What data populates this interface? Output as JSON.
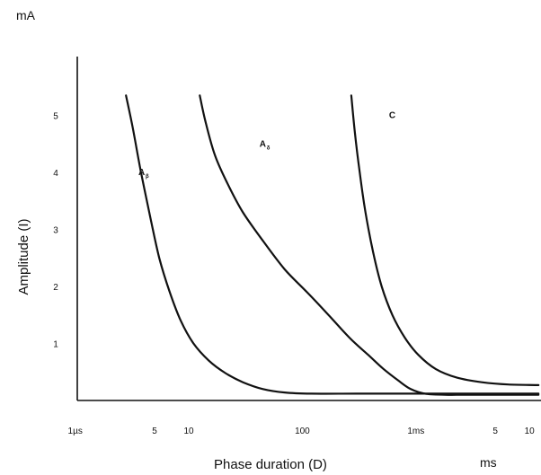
{
  "chart_data": {
    "type": "line",
    "title": "",
    "xlabel": "Phase duration  (D)",
    "ylabel": "Amplitude  (I)",
    "y_unit": "mA",
    "x_unit": "ms",
    "x_scale": "log",
    "xlim": [
      0.0006,
      12
    ],
    "ylim": [
      0,
      5.8
    ],
    "grid": false,
    "legend": "none",
    "x_ticks": [
      {
        "value": 0.001,
        "label": "1µs"
      },
      {
        "value": 0.005,
        "label": "5"
      },
      {
        "value": 0.01,
        "label": "10"
      },
      {
        "value": 0.1,
        "label": "100"
      },
      {
        "value": 1,
        "label": "1ms"
      },
      {
        "value": 5,
        "label": "5"
      },
      {
        "value": 10,
        "label": "10"
      }
    ],
    "y_ticks": [
      {
        "value": 1,
        "label": "1"
      },
      {
        "value": 2,
        "label": "2"
      },
      {
        "value": 3,
        "label": "3"
      },
      {
        "value": 4,
        "label": "4"
      },
      {
        "value": 5,
        "label": "5"
      }
    ],
    "series": [
      {
        "label_main": "A",
        "label_sub": "β",
        "label_at": {
          "x": 0.0036,
          "y": 3.95
        },
        "x": [
          0.0028,
          0.0032,
          0.0038,
          0.0046,
          0.0055,
          0.0068,
          0.0085,
          0.011,
          0.015,
          0.021,
          0.03,
          0.045,
          0.07,
          0.12,
          0.3,
          1.0,
          12
        ],
        "y": [
          5.35,
          4.8,
          4.0,
          3.2,
          2.5,
          1.9,
          1.4,
          1.0,
          0.7,
          0.48,
          0.32,
          0.2,
          0.14,
          0.12,
          0.12,
          0.12,
          0.12
        ]
      },
      {
        "label_main": "A",
        "label_sub": "δ",
        "label_at": {
          "x": 0.042,
          "y": 4.45
        },
        "x": [
          0.0125,
          0.014,
          0.017,
          0.022,
          0.03,
          0.045,
          0.07,
          0.11,
          0.17,
          0.26,
          0.38,
          0.52,
          0.7,
          0.9,
          1.2,
          1.8,
          3.0,
          12
        ],
        "y": [
          5.35,
          4.9,
          4.3,
          3.8,
          3.3,
          2.8,
          2.3,
          1.9,
          1.5,
          1.1,
          0.8,
          0.55,
          0.35,
          0.2,
          0.12,
          0.1,
          0.1,
          0.1
        ]
      },
      {
        "label_main": "C",
        "label_sub": "",
        "label_at": {
          "x": 0.58,
          "y": 4.95
        },
        "x": [
          0.27,
          0.29,
          0.32,
          0.36,
          0.42,
          0.5,
          0.62,
          0.8,
          1.05,
          1.5,
          2.3,
          3.8,
          6.5,
          12
        ],
        "y": [
          5.35,
          4.7,
          4.0,
          3.3,
          2.6,
          2.0,
          1.5,
          1.1,
          0.8,
          0.55,
          0.4,
          0.32,
          0.28,
          0.27
        ]
      }
    ]
  }
}
